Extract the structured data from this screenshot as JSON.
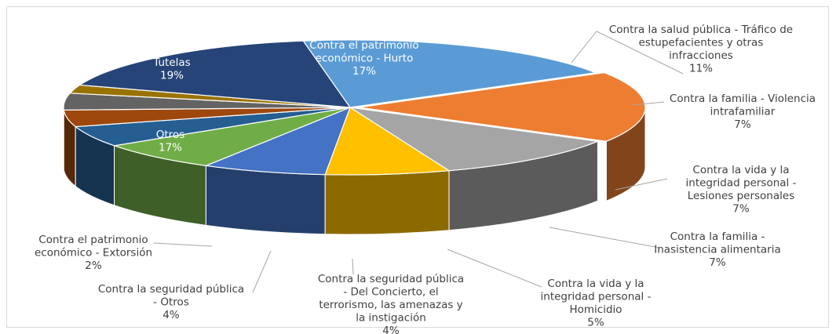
{
  "chart_data": {
    "type": "pie",
    "title": "",
    "style": "3d-exploded-pie",
    "slices": [
      {
        "name": "Contra el patrimonio económico - Hurto",
        "name_lines": [
          "Contra el patrimonio",
          "económico - Hurto"
        ],
        "pct_label": "17%",
        "value": 17,
        "color": "#ed7d31"
      },
      {
        "name": "Contra la salud pública - Tráfico de estupefacientes y otras infracciones",
        "name_lines": [
          "Contra la salud pública - Tráfico de",
          "estupefacientes y otras",
          "infracciones"
        ],
        "pct_label": "11%",
        "value": 11,
        "color": "#a5a5a5"
      },
      {
        "name": "Contra la familia - Violencia intrafamiliar",
        "name_lines": [
          "Contra la familia - Violencia",
          "intrafamiliar"
        ],
        "pct_label": "7%",
        "value": 7,
        "color": "#ffc000"
      },
      {
        "name": "Contra la vida y la integridad personal - Lesiones personales",
        "name_lines": [
          "Contra la vida y la",
          "integridad personal -",
          "Lesiones personales"
        ],
        "pct_label": "7%",
        "value": 7,
        "color": "#4472c4"
      },
      {
        "name": "Contra la familia - Inasistencia alimentaria",
        "name_lines": [
          "Contra la familia -",
          "Inasistencia alimentaria"
        ],
        "pct_label": "7%",
        "value": 7,
        "color": "#70ad47"
      },
      {
        "name": "Contra la vida y la integridad personal - Homicidio",
        "name_lines": [
          "Contra la vida y la",
          "integridad personal -",
          "Homicidio"
        ],
        "pct_label": "5%",
        "value": 5,
        "color": "#255e91"
      },
      {
        "name": "Contra la seguridad pública - Del Concierto, el terrorismo, las amenazas y la instigación",
        "name_lines": [
          "Contra la seguridad pública",
          "- Del Concierto, el",
          "terrorismo, las amenazas y",
          "la instigación"
        ],
        "pct_label": "4%",
        "value": 4,
        "color": "#9e480e"
      },
      {
        "name": "Contra la seguridad pública - Otros",
        "name_lines": [
          "Contra la seguridad pública",
          "- Otros"
        ],
        "pct_label": "4%",
        "value": 4,
        "color": "#636363"
      },
      {
        "name": "Contra el patrimonio económico - Extorsión",
        "name_lines": [
          "Contra el patrimonio",
          "económico - Extorsión"
        ],
        "pct_label": "2%",
        "value": 2,
        "color": "#997300"
      },
      {
        "name": "Otros",
        "name_lines": [
          "Otros"
        ],
        "pct_label": "17%",
        "value": 17,
        "color": "#264478"
      },
      {
        "name": "Tutelas",
        "name_lines": [
          "Tutelas"
        ],
        "pct_label": "19%",
        "value": 19,
        "color": "#5b9bd5"
      }
    ],
    "label_placement": [
      "inside",
      "outside",
      "outside",
      "outside",
      "outside",
      "outside",
      "outside",
      "outside",
      "outside",
      "inside",
      "inside"
    ],
    "legend": "none"
  }
}
